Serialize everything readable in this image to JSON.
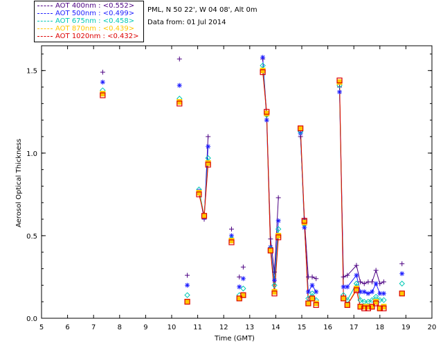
{
  "legend": {
    "items": [
      {
        "label": "AOT  400nm : <0.552>",
        "color": "#4b0082"
      },
      {
        "label": "AOT  500nm : <0.499>",
        "color": "#1c1cff"
      },
      {
        "label": "AOT  675nm : <0.458>",
        "color": "#00c8b4"
      },
      {
        "label": "AOT  870nm : <0.439>",
        "color": "#ffc800"
      },
      {
        "label": "AOT 1020nm : <0.432>",
        "color": "#dc0000"
      }
    ]
  },
  "info": {
    "site": "PML, N 50 22', W 04 08', Alt 0m",
    "date": "Data from: 01 Jul 2014"
  },
  "chart_data": {
    "type": "line",
    "xlabel": "Time (GMT)",
    "ylabel": "Aerosol Optical Thickness",
    "xlim": [
      5,
      20
    ],
    "ylim": [
      0,
      1.65
    ],
    "xticks": [
      5,
      6,
      7,
      8,
      9,
      10,
      11,
      12,
      13,
      14,
      15,
      16,
      17,
      18,
      19,
      20
    ],
    "yticks": [
      0.0,
      0.5,
      1.0,
      1.5
    ],
    "ytick_labels": [
      "0.0",
      "0.5",
      "1.0",
      "1.5"
    ],
    "x": [
      7.35,
      10.3,
      10.6,
      11.05,
      11.25,
      11.4,
      12.3,
      12.6,
      12.75,
      13.5,
      13.65,
      13.8,
      13.95,
      14.1,
      14.95,
      15.1,
      15.25,
      15.4,
      15.55,
      16.45,
      16.6,
      16.75,
      17.1,
      17.25,
      17.4,
      17.55,
      17.7,
      17.85,
      18.0,
      18.15,
      18.85
    ],
    "series": [
      {
        "name": "AOT 400nm",
        "color": "#4b0082",
        "marker": "plus",
        "values": [
          1.49,
          1.57,
          0.26,
          0.77,
          0.6,
          1.1,
          0.54,
          0.25,
          0.31,
          1.57,
          1.24,
          0.48,
          0.28,
          0.73,
          1.1,
          0.6,
          0.25,
          0.25,
          0.24,
          1.4,
          0.25,
          0.26,
          0.32,
          0.22,
          0.21,
          0.22,
          0.22,
          0.29,
          0.21,
          0.22,
          0.33
        ]
      },
      {
        "name": "AOT 500nm",
        "color": "#1c1cff",
        "marker": "star",
        "values": [
          1.43,
          1.41,
          0.2,
          0.77,
          0.61,
          1.04,
          0.5,
          0.19,
          0.24,
          1.58,
          1.2,
          0.43,
          0.23,
          0.59,
          1.12,
          0.55,
          0.16,
          0.2,
          0.16,
          1.37,
          0.19,
          0.19,
          0.26,
          0.16,
          0.16,
          0.15,
          0.16,
          0.21,
          0.15,
          0.15,
          0.27
        ]
      },
      {
        "name": "AOT 675nm",
        "color": "#00c8b4",
        "marker": "diamond",
        "values": [
          1.38,
          1.33,
          0.14,
          0.78,
          0.62,
          0.97,
          0.48,
          0.14,
          0.18,
          1.53,
          1.23,
          0.42,
          0.2,
          0.54,
          1.13,
          0.57,
          0.12,
          0.15,
          0.11,
          1.41,
          0.14,
          0.11,
          0.21,
          0.11,
          0.1,
          0.1,
          0.11,
          0.13,
          0.11,
          0.11,
          0.21
        ]
      },
      {
        "name": "AOT 870nm",
        "color": "#ffc800",
        "marker": "square",
        "values": [
          1.36,
          1.31,
          0.1,
          0.76,
          0.62,
          0.94,
          0.47,
          0.12,
          0.14,
          1.5,
          1.24,
          0.41,
          0.16,
          0.5,
          1.15,
          0.58,
          0.09,
          0.12,
          0.09,
          1.43,
          0.12,
          0.08,
          0.18,
          0.07,
          0.07,
          0.07,
          0.07,
          0.1,
          0.06,
          0.07,
          0.15
        ]
      },
      {
        "name": "AOT 1020nm",
        "color": "#dc0000",
        "marker": "square",
        "values": [
          1.35,
          1.3,
          0.1,
          0.75,
          0.62,
          0.93,
          0.46,
          0.12,
          0.14,
          1.49,
          1.25,
          0.41,
          0.15,
          0.49,
          1.15,
          0.59,
          0.09,
          0.12,
          0.08,
          1.44,
          0.12,
          0.08,
          0.17,
          0.07,
          0.06,
          0.06,
          0.07,
          0.09,
          0.06,
          0.06,
          0.15
        ]
      }
    ],
    "connected_segments": [
      [
        3,
        5
      ],
      [
        9,
        13
      ],
      [
        14,
        18
      ],
      [
        19,
        29
      ]
    ]
  }
}
